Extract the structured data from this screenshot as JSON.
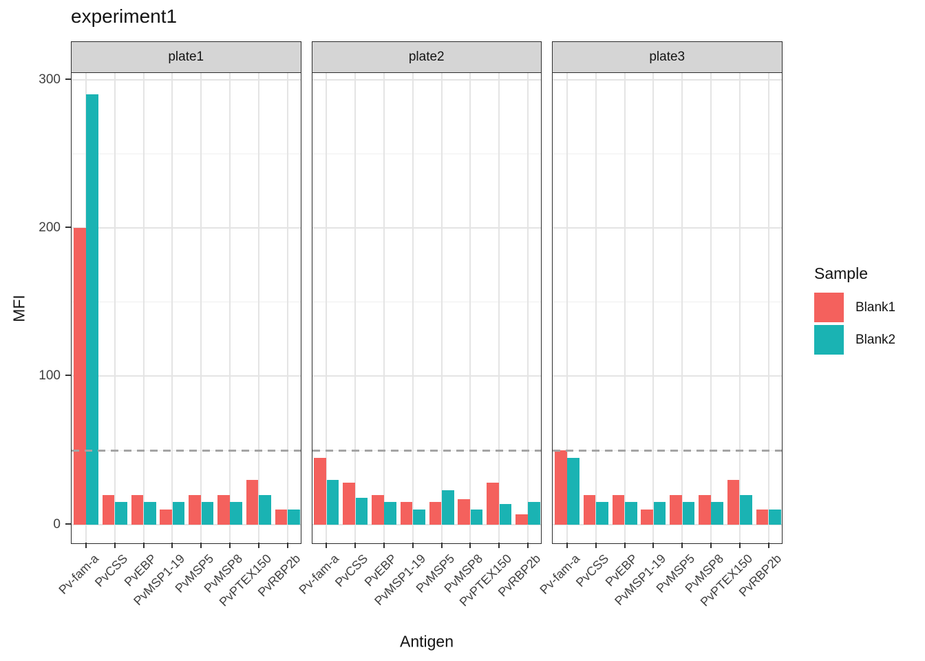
{
  "chart_data": {
    "type": "bar",
    "title": "experiment1",
    "xlabel": "Antigen",
    "ylabel": "MFI",
    "ylim": [
      0,
      300
    ],
    "yticks": [
      0,
      100,
      200,
      300
    ],
    "ytick_labels": [
      "0",
      "100",
      "200",
      "300"
    ],
    "minor_gridlines": [
      50,
      150,
      250
    ],
    "threshold_line": {
      "value": 50,
      "style": "dashed",
      "color": "#a4a4a4"
    },
    "grid": true,
    "legend_position": "right",
    "legend_title": "Sample",
    "legend": [
      {
        "label": "Blank1",
        "color": "#f4615d"
      },
      {
        "label": "Blank2",
        "color": "#1ab3b3"
      }
    ],
    "categories": [
      "Pv-fam-a",
      "PvCSS",
      "PvEBP",
      "PvMSP1-19",
      "PvMSP5",
      "PvMSP8",
      "PvPTEX150",
      "PvRBP2b"
    ],
    "facets": [
      {
        "label": "plate1",
        "series": [
          {
            "name": "Blank1",
            "values": [
              200,
              20,
              20,
              10,
              20,
              20,
              30,
              10
            ]
          },
          {
            "name": "Blank2",
            "values": [
              290,
              15,
              15,
              15,
              15,
              15,
              20,
              10
            ]
          }
        ]
      },
      {
        "label": "plate2",
        "series": [
          {
            "name": "Blank1",
            "values": [
              45,
              28,
              20,
              15,
              15,
              17,
              28,
              7
            ]
          },
          {
            "name": "Blank2",
            "values": [
              30,
              18,
              15,
              10,
              23,
              10,
              14,
              15
            ]
          }
        ]
      },
      {
        "label": "plate3",
        "series": [
          {
            "name": "Blank1",
            "values": [
              50,
              20,
              20,
              10,
              20,
              20,
              30,
              10
            ]
          },
          {
            "name": "Blank2",
            "values": [
              45,
              15,
              15,
              15,
              15,
              15,
              20,
              10
            ]
          }
        ]
      }
    ]
  }
}
